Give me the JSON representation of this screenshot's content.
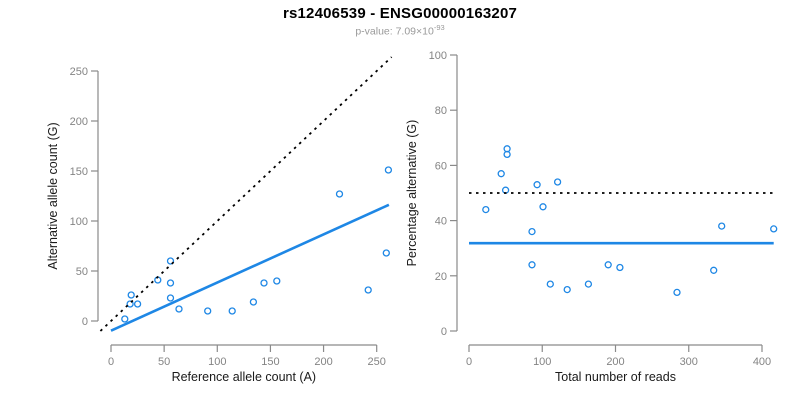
{
  "header": {
    "title": "rs12406539 - ENSG00000163207",
    "subtitle_prefix": "p-value: 7.09×10",
    "subtitle_exponent": "-93"
  },
  "colors": {
    "accent_blue": "#1e87e5",
    "dotted_black": "#000000",
    "spine_gray": "#8a8a8a",
    "tick_label_gray": "#848484",
    "axis_title_black": "#1a1a1a"
  },
  "chart_data": [
    {
      "type": "scatter",
      "xlabel": "Reference allele count (A)",
      "ylabel": "Alternative allele count (G)",
      "xlim": [
        0,
        250
      ],
      "ylim": [
        0,
        250
      ],
      "xticks": [
        0,
        50,
        100,
        150,
        200,
        250
      ],
      "yticks": [
        0,
        50,
        100,
        150,
        200,
        250
      ],
      "grid": false,
      "legend": null,
      "points": [
        [
          13,
          2
        ],
        [
          18,
          17
        ],
        [
          19,
          26
        ],
        [
          25,
          17
        ],
        [
          44,
          41
        ],
        [
          56,
          60
        ],
        [
          56,
          38
        ],
        [
          56,
          23
        ],
        [
          64,
          12
        ],
        [
          91,
          10
        ],
        [
          114,
          10
        ],
        [
          134,
          19
        ],
        [
          144,
          38
        ],
        [
          156,
          40
        ],
        [
          215,
          127
        ],
        [
          242,
          31
        ],
        [
          259,
          68
        ],
        [
          261,
          151
        ]
      ],
      "lines": [
        {
          "name": "identity-line",
          "style": "dotted",
          "color": "#000000",
          "x1": -10,
          "y1": -10,
          "x2": 264,
          "y2": 264
        },
        {
          "name": "fit-line",
          "style": "solid",
          "color": "#1e87e5",
          "x1": 0,
          "y1": -9.7,
          "x2": 261.5,
          "y2": 116.2
        }
      ]
    },
    {
      "type": "scatter",
      "xlabel": "Total number of reads",
      "ylabel": "Percentage alternative (G)",
      "xlim": [
        0,
        400
      ],
      "ylim": [
        0,
        100
      ],
      "xticks": [
        0,
        100,
        200,
        300,
        400
      ],
      "yticks": [
        0,
        20,
        40,
        60,
        80,
        100
      ],
      "grid": false,
      "legend": null,
      "points": [
        [
          23,
          44
        ],
        [
          44,
          57
        ],
        [
          50,
          51
        ],
        [
          52,
          66
        ],
        [
          52,
          64
        ],
        [
          86,
          36
        ],
        [
          86,
          24
        ],
        [
          93,
          53
        ],
        [
          101,
          45
        ],
        [
          111,
          17
        ],
        [
          121,
          54
        ],
        [
          134,
          15
        ],
        [
          163,
          17
        ],
        [
          190,
          24
        ],
        [
          206,
          23
        ],
        [
          284,
          14
        ],
        [
          334,
          22
        ],
        [
          345,
          38
        ],
        [
          416,
          37
        ]
      ],
      "lines": [
        {
          "name": "fifty-percent-line",
          "style": "dotted",
          "color": "#000000",
          "x1": 0,
          "y1": 50,
          "x2": 416,
          "y2": 50
        },
        {
          "name": "mean-percentage-line",
          "style": "solid",
          "color": "#1e87e5",
          "x1": 0,
          "y1": 31.8,
          "x2": 416,
          "y2": 31.8
        }
      ]
    }
  ]
}
